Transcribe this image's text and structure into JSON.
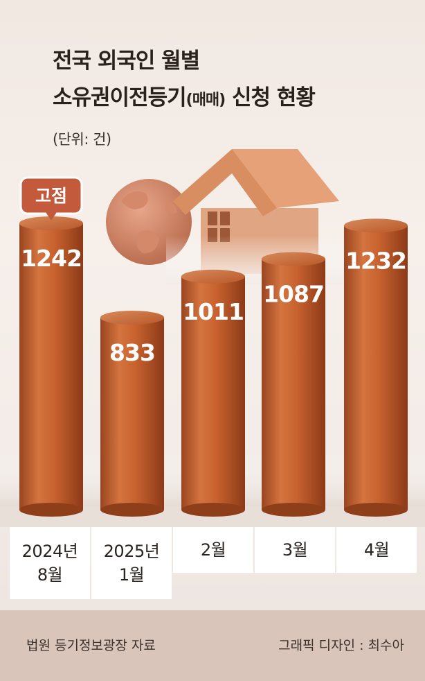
{
  "header": {
    "title_line1": "전국 외국인 월별",
    "title_line2_main": "소유권이전등기",
    "title_line2_small": "(매매)",
    "title_line2_end": " 신청 현황",
    "unit": "(단위: 건)"
  },
  "chart_data": {
    "type": "bar",
    "categories": [
      "2024년\n8월",
      "2025년\n1월",
      "2월",
      "3월",
      "4월"
    ],
    "values": [
      1242,
      833,
      1011,
      1087,
      1232
    ],
    "value_labels": [
      "1242",
      "833",
      "1011",
      "1087",
      "1232"
    ],
    "annotation": {
      "text": "고점",
      "category_index": 0
    },
    "bar_color": "#c4622f",
    "badge_color": "#c45a3c"
  },
  "footer": {
    "source": "법원 등기정보광장 자료",
    "credit": "그래픽 디자인 : 최수아"
  }
}
